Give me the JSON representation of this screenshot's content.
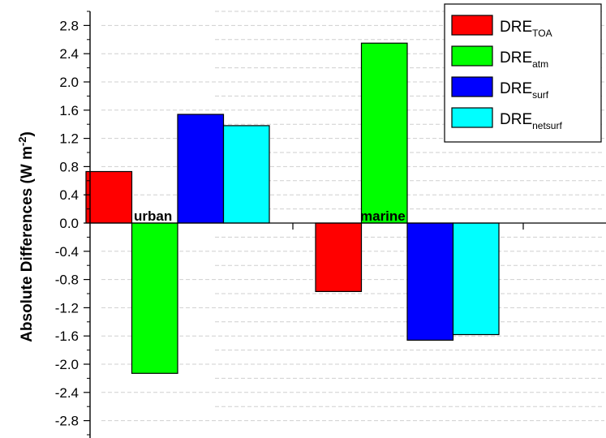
{
  "chart_data": {
    "type": "bar",
    "categories": [
      "urban",
      "marine"
    ],
    "series": [
      {
        "name": "DRE",
        "name_sub": "TOA",
        "color": "#ff0000",
        "values": [
          0.73,
          -0.97
        ]
      },
      {
        "name": "DRE",
        "name_sub": "atm",
        "color": "#00ff00",
        "values": [
          -2.13,
          2.55
        ]
      },
      {
        "name": "DRE",
        "name_sub": "surf",
        "color": "#0000ff",
        "values": [
          1.54,
          -1.66
        ]
      },
      {
        "name": "DRE",
        "name_sub": "netsurf",
        "color": "#00ffff",
        "values": [
          1.38,
          -1.58
        ]
      }
    ],
    "ylabel": {
      "main": "Absolute Differences (W m",
      "sup": "-2",
      "end": ")"
    },
    "ylim": [
      -3.0,
      3.0
    ],
    "yticks": [
      "2.8",
      "2.4",
      "2.0",
      "1.6",
      "1.2",
      "0.8",
      "0.4",
      "0.0",
      "-0.4",
      "-0.8",
      "-1.2",
      "-1.6",
      "-2.0",
      "-2.4",
      "-2.8"
    ],
    "legend_position": "top-right",
    "grid": "dashed horizontal minor lines"
  }
}
